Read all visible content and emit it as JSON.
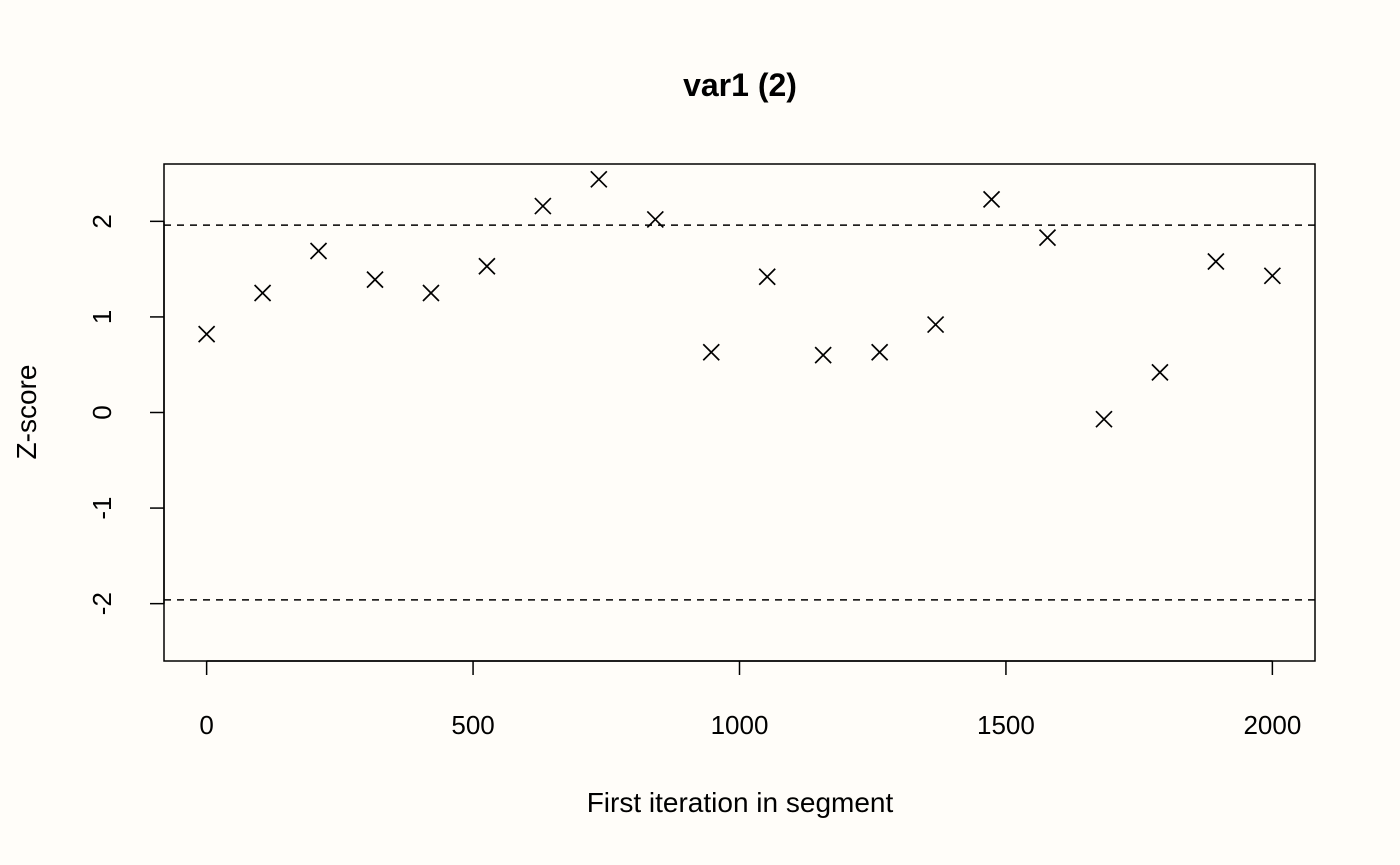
{
  "chart_data": {
    "type": "scatter",
    "title": "var1 (2)",
    "xlabel": "First iteration in segment",
    "ylabel": "Z-score",
    "xlim": [
      -80,
      2080
    ],
    "ylim": [
      -2.6,
      2.6
    ],
    "x_ticks": [
      0,
      500,
      1000,
      1500,
      2000
    ],
    "y_ticks": [
      -2,
      -1,
      0,
      1,
      2
    ],
    "x_tick_labels": [
      "0",
      "500",
      "1000",
      "1500",
      "2000"
    ],
    "y_tick_labels": [
      "-2",
      "-1",
      "0",
      "1",
      "2"
    ],
    "reference_lines": [
      1.96,
      -1.96
    ],
    "marker": "x",
    "grid": false,
    "points": [
      {
        "x": 0,
        "y": 0.82
      },
      {
        "x": 105,
        "y": 1.25
      },
      {
        "x": 210,
        "y": 1.69
      },
      {
        "x": 316,
        "y": 1.39
      },
      {
        "x": 421,
        "y": 1.25
      },
      {
        "x": 526,
        "y": 1.53
      },
      {
        "x": 631,
        "y": 2.16
      },
      {
        "x": 736,
        "y": 2.44
      },
      {
        "x": 842,
        "y": 2.02
      },
      {
        "x": 947,
        "y": 0.63
      },
      {
        "x": 1052,
        "y": 1.42
      },
      {
        "x": 1157,
        "y": 0.6
      },
      {
        "x": 1263,
        "y": 0.63
      },
      {
        "x": 1368,
        "y": 0.92
      },
      {
        "x": 1473,
        "y": 2.23
      },
      {
        "x": 1578,
        "y": 1.83
      },
      {
        "x": 1684,
        "y": -0.07
      },
      {
        "x": 1789,
        "y": 0.42
      },
      {
        "x": 1894,
        "y": 1.58
      },
      {
        "x": 2000,
        "y": 1.43
      }
    ]
  }
}
